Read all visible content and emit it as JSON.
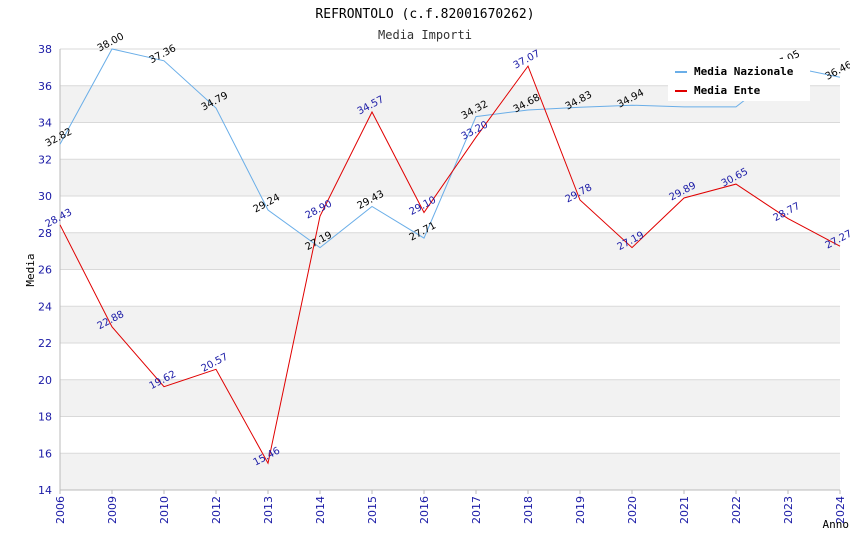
{
  "chart_data": {
    "type": "line",
    "title": "REFRONTOLO (c.f.82001670262)",
    "subtitle": "Media Importi",
    "xlabel": "Anno",
    "ylabel": "Media",
    "ylim": [
      14,
      38
    ],
    "yticks": [
      14,
      16,
      18,
      20,
      22,
      24,
      26,
      28,
      30,
      32,
      34,
      36,
      38
    ],
    "categories": [
      "2006",
      "2009",
      "2010",
      "2012",
      "2013",
      "2014",
      "2015",
      "2016",
      "2017",
      "2018",
      "2019",
      "2020",
      "2021",
      "2022",
      "2023",
      "2024"
    ],
    "grid": true,
    "legend_position": "top-right",
    "series": [
      {
        "name": "Media Nazionale",
        "color": "#6aaee8",
        "values": [
          32.82,
          38.0,
          37.36,
          34.79,
          29.24,
          27.19,
          29.43,
          27.71,
          34.32,
          34.68,
          34.83,
          34.94,
          34.85,
          34.85,
          37.05,
          36.46
        ],
        "labels": [
          "32.82",
          "38.00",
          "37.36",
          "34.79",
          "29.24",
          "27.19",
          "29.43",
          "27.71",
          "34.32",
          "34.68",
          "34.83",
          "34.94",
          null,
          null,
          "37.05",
          "36.46"
        ]
      },
      {
        "name": "Media Ente",
        "color": "#e00000",
        "values": [
          28.43,
          22.88,
          19.62,
          20.57,
          15.46,
          28.9,
          34.57,
          29.1,
          33.2,
          37.07,
          29.78,
          27.19,
          29.89,
          30.65,
          28.77,
          27.27
        ],
        "labels": [
          "28.43",
          "22.88",
          "19.62",
          "20.57",
          "15.46",
          "28.90",
          "34.57",
          "29.10",
          "33.20",
          "37.07",
          "29.78",
          "27.19",
          "29.89",
          "30.65",
          "28.77",
          "27.27"
        ]
      }
    ]
  }
}
